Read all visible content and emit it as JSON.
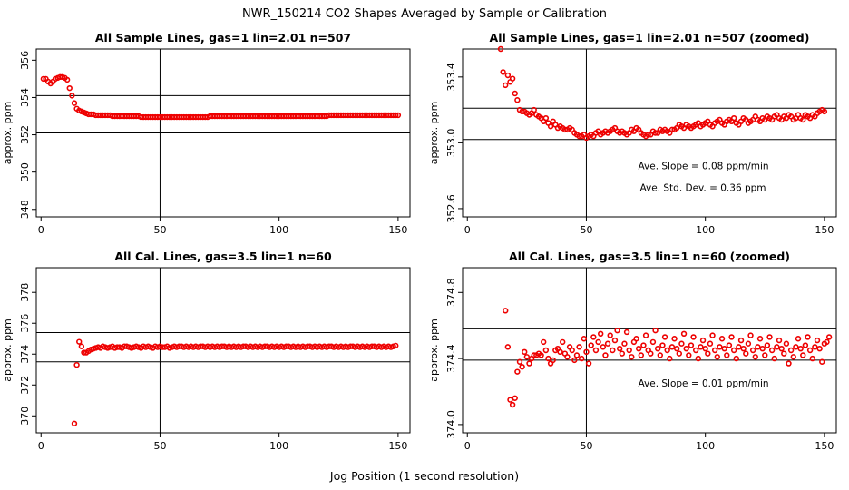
{
  "page_title": "NWR_150214  CO2 Shapes Averaged by Sample or Calibration",
  "x_axis_label": "Jog Position (1 second resolution)",
  "colors": {
    "points": "#ee0000",
    "lines": "#000000"
  },
  "chart_data": [
    {
      "type": "scatter",
      "title": "All Sample Lines, gas=1 lin=2.01 n=507",
      "ylabel": "approx. ppm",
      "xlim": [
        -2,
        155
      ],
      "ylim": [
        347.6,
        356.6
      ],
      "xticks": [
        "0",
        "50",
        "100",
        "150"
      ],
      "xtick_values": [
        0,
        50,
        100,
        150
      ],
      "yticks": [
        "348",
        "350",
        "352",
        "354",
        "356"
      ],
      "ytick_values": [
        348,
        350,
        352,
        354,
        356
      ],
      "hlines": [
        354.1,
        352.1
      ],
      "vlines": [
        50
      ],
      "annotations": [],
      "x_range": [
        1,
        150
      ],
      "y": [
        355.0,
        355.0,
        354.85,
        354.75,
        354.85,
        355.0,
        355.05,
        355.1,
        355.1,
        355.05,
        354.95,
        354.5,
        354.1,
        353.7,
        353.4,
        353.3,
        353.25,
        353.2,
        353.15,
        353.1,
        353.1,
        353.1,
        353.05,
        353.05,
        353.05,
        353.05,
        353.05,
        353.05,
        353.05,
        353.0,
        353.0,
        353.0,
        353.0,
        353.0,
        353.0,
        353.0,
        353.0,
        353.0,
        353.0,
        353.0,
        353.0,
        352.95,
        352.95,
        352.95,
        352.95,
        352.95,
        352.95,
        352.95,
        352.95,
        352.95,
        352.95,
        352.95,
        352.95,
        352.95,
        352.95,
        352.95,
        352.95,
        352.95,
        352.95,
        352.95,
        352.95,
        352.95,
        352.95,
        352.95,
        352.95,
        352.95,
        352.95,
        352.95,
        352.95,
        352.95,
        353.0,
        353.0,
        353.0,
        353.0,
        353.0,
        353.0,
        353.0,
        353.0,
        353.0,
        353.0,
        353.0,
        353.0,
        353.0,
        353.0,
        353.0,
        353.0,
        353.0,
        353.0,
        353.0,
        353.0,
        353.0,
        353.0,
        353.0,
        353.0,
        353.0,
        353.0,
        353.0,
        353.0,
        353.0,
        353.0,
        353.0,
        353.0,
        353.0,
        353.0,
        353.0,
        353.0,
        353.0,
        353.0,
        353.0,
        353.0,
        353.0,
        353.0,
        353.0,
        353.0,
        353.0,
        353.0,
        353.0,
        353.0,
        353.0,
        353.0,
        353.05,
        353.05,
        353.05,
        353.05,
        353.05,
        353.05,
        353.05,
        353.05,
        353.05,
        353.05,
        353.05,
        353.05,
        353.05,
        353.05,
        353.05,
        353.05,
        353.05,
        353.05,
        353.05,
        353.05,
        353.05,
        353.05,
        353.05,
        353.05,
        353.05,
        353.05,
        353.05,
        353.05,
        353.05,
        353.05
      ]
    },
    {
      "type": "scatter",
      "title": "All Sample Lines, gas=1 lin=2.01 n=507 (zoomed)",
      "ylabel": "approx. ppm",
      "xlim": [
        -2,
        155
      ],
      "ylim": [
        352.55,
        353.57
      ],
      "xticks": [
        "0",
        "50",
        "100",
        "150"
      ],
      "xtick_values": [
        0,
        50,
        100,
        150
      ],
      "yticks": [
        "352.6",
        "353.0",
        "353.4"
      ],
      "ytick_values": [
        352.6,
        353.0,
        353.4
      ],
      "hlines": [
        353.21,
        353.02
      ],
      "vlines": [
        50
      ],
      "annotations": [
        "Ave. Slope =  0.08  ppm/min",
        "Ave. Std. Dev. =  0.36  ppm"
      ],
      "x_range": [
        14,
        150
      ],
      "y": [
        353.57,
        353.43,
        353.35,
        353.41,
        353.37,
        353.39,
        353.3,
        353.26,
        353.2,
        353.19,
        353.19,
        353.18,
        353.17,
        353.18,
        353.2,
        353.17,
        353.16,
        353.15,
        353.13,
        353.15,
        353.12,
        353.1,
        353.13,
        353.11,
        353.09,
        353.1,
        353.09,
        353.08,
        353.08,
        353.09,
        353.08,
        353.06,
        353.05,
        353.04,
        353.04,
        353.05,
        353.03,
        353.04,
        353.05,
        353.04,
        353.06,
        353.07,
        353.05,
        353.06,
        353.07,
        353.06,
        353.07,
        353.08,
        353.09,
        353.07,
        353.06,
        353.07,
        353.06,
        353.05,
        353.06,
        353.08,
        353.07,
        353.09,
        353.08,
        353.06,
        353.05,
        353.04,
        353.05,
        353.05,
        353.07,
        353.06,
        353.06,
        353.08,
        353.07,
        353.08,
        353.07,
        353.06,
        353.08,
        353.08,
        353.09,
        353.11,
        353.1,
        353.09,
        353.11,
        353.1,
        353.09,
        353.1,
        353.11,
        353.12,
        353.1,
        353.11,
        353.12,
        353.13,
        353.11,
        353.1,
        353.12,
        353.13,
        353.14,
        353.12,
        353.11,
        353.13,
        353.14,
        353.13,
        353.15,
        353.12,
        353.11,
        353.13,
        353.15,
        353.14,
        353.12,
        353.13,
        353.14,
        353.16,
        353.14,
        353.13,
        353.15,
        353.14,
        353.16,
        353.15,
        353.14,
        353.16,
        353.17,
        353.15,
        353.14,
        353.16,
        353.15,
        353.17,
        353.16,
        353.14,
        353.15,
        353.17,
        353.15,
        353.14,
        353.17,
        353.16,
        353.15,
        353.17,
        353.16,
        353.18,
        353.19,
        353.2,
        353.19
      ]
    },
    {
      "type": "scatter",
      "title": "All Cal. Lines, gas=3.5 lin=1 n=60",
      "ylabel": "approx. ppm",
      "xlim": [
        -2,
        155
      ],
      "ylim": [
        368.9,
        379.6
      ],
      "xticks": [
        "0",
        "50",
        "100",
        "150"
      ],
      "xtick_values": [
        0,
        50,
        100,
        150
      ],
      "yticks": [
        "370",
        "372",
        "374",
        "376",
        "378"
      ],
      "ytick_values": [
        370,
        372,
        374,
        376,
        378
      ],
      "hlines": [
        375.4,
        373.5
      ],
      "vlines": [
        50
      ],
      "annotations": [],
      "x_range": [
        14,
        150
      ],
      "y": [
        369.5,
        373.3,
        374.8,
        374.5,
        374.1,
        374.1,
        374.2,
        374.3,
        374.35,
        374.4,
        374.45,
        374.4,
        374.5,
        374.45,
        374.4,
        374.45,
        374.5,
        374.4,
        374.45,
        374.45,
        374.4,
        374.5,
        374.5,
        374.45,
        374.4,
        374.45,
        374.5,
        374.45,
        374.4,
        374.5,
        374.45,
        374.5,
        374.45,
        374.4,
        374.5,
        374.45,
        374.5,
        374.45,
        374.45,
        374.5,
        374.4,
        374.45,
        374.5,
        374.45,
        374.5,
        374.5,
        374.45,
        374.5,
        374.45,
        374.5,
        374.45,
        374.5,
        374.45,
        374.5,
        374.5,
        374.45,
        374.5,
        374.45,
        374.5,
        374.45,
        374.5,
        374.45,
        374.5,
        374.5,
        374.45,
        374.5,
        374.45,
        374.5,
        374.45,
        374.5,
        374.45,
        374.5,
        374.5,
        374.45,
        374.5,
        374.45,
        374.5,
        374.45,
        374.5,
        374.45,
        374.5,
        374.5,
        374.45,
        374.5,
        374.45,
        374.5,
        374.45,
        374.5,
        374.45,
        374.5,
        374.5,
        374.45,
        374.5,
        374.45,
        374.5,
        374.45,
        374.5,
        374.45,
        374.5,
        374.5,
        374.45,
        374.5,
        374.45,
        374.5,
        374.45,
        374.5,
        374.45,
        374.5,
        374.5,
        374.45,
        374.5,
        374.45,
        374.5,
        374.45,
        374.5,
        374.45,
        374.5,
        374.5,
        374.45,
        374.5,
        374.45,
        374.5,
        374.45,
        374.5,
        374.45,
        374.5,
        374.5,
        374.45,
        374.5,
        374.45,
        374.5,
        374.45,
        374.5,
        374.45,
        374.5,
        374.55
      ]
    },
    {
      "type": "scatter",
      "title": "All Cal. Lines, gas=3.5 lin=1 n=60 (zoomed)",
      "ylabel": "approx. ppm",
      "xlim": [
        -2,
        155
      ],
      "ylim": [
        373.95,
        374.95
      ],
      "xticks": [
        "0",
        "50",
        "100",
        "150"
      ],
      "xtick_values": [
        0,
        50,
        100,
        150
      ],
      "yticks": [
        "374.0",
        "374.4",
        "374.8"
      ],
      "ytick_values": [
        374.0,
        374.4,
        374.8
      ],
      "hlines": [
        374.58,
        374.39
      ],
      "vlines": [
        50
      ],
      "annotations": [
        "Ave. Slope =  0.01  ppm/min"
      ],
      "x_range": [
        16,
        150
      ],
      "y": [
        374.69,
        374.47,
        374.15,
        374.12,
        374.16,
        374.32,
        374.38,
        374.35,
        374.44,
        374.41,
        374.37,
        374.4,
        374.42,
        374.42,
        374.43,
        374.42,
        374.5,
        374.45,
        374.4,
        374.37,
        374.39,
        374.45,
        374.46,
        374.44,
        374.5,
        374.43,
        374.41,
        374.47,
        374.45,
        374.39,
        374.42,
        374.47,
        374.4,
        374.52,
        374.44,
        374.37,
        374.48,
        374.53,
        374.45,
        374.5,
        374.55,
        374.47,
        374.42,
        374.49,
        374.54,
        374.45,
        374.51,
        374.57,
        374.46,
        374.43,
        374.49,
        374.56,
        374.45,
        374.41,
        374.5,
        374.52,
        374.46,
        374.42,
        374.48,
        374.54,
        374.45,
        374.43,
        374.5,
        374.57,
        374.46,
        374.42,
        374.48,
        374.53,
        374.45,
        374.4,
        374.47,
        374.52,
        374.46,
        374.43,
        374.49,
        374.55,
        374.46,
        374.42,
        374.48,
        374.53,
        374.45,
        374.4,
        374.47,
        374.51,
        374.46,
        374.43,
        374.49,
        374.54,
        374.45,
        374.41,
        374.47,
        374.52,
        374.46,
        374.42,
        374.48,
        374.53,
        374.45,
        374.4,
        374.47,
        374.51,
        374.46,
        374.43,
        374.49,
        374.54,
        374.45,
        374.41,
        374.47,
        374.52,
        374.46,
        374.42,
        374.48,
        374.53,
        374.45,
        374.4,
        374.47,
        374.51,
        374.46,
        374.43,
        374.49,
        374.37,
        374.45,
        374.41,
        374.47,
        374.52,
        374.46,
        374.42,
        374.48,
        374.53,
        374.45,
        374.4,
        374.47,
        374.51,
        374.46,
        374.38,
        374.49,
        374.5,
        374.53
      ]
    }
  ]
}
